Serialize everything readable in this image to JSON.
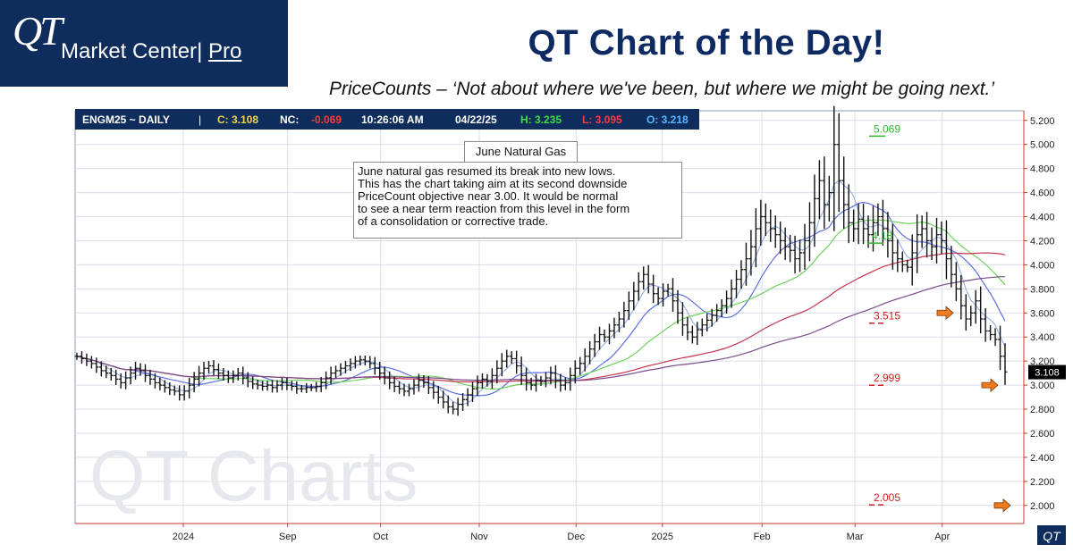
{
  "brand": {
    "logo_text": "QT",
    "name": "Market Center",
    "separator": "|",
    "tier": "Pro"
  },
  "headline": "QT Chart of the Day!",
  "subline": "PriceCounts – ‘Not about where we've been, but where we might be going next.’",
  "header_bar": {
    "symbol": "ENGM25 ~ DAILY",
    "sep": "|",
    "close": "C: 3.108",
    "net_label": "NC:",
    "net_value": "-0.069",
    "time": "10:26:06 AM",
    "date": "04/22/25",
    "high": "H: 3.235",
    "low": "L: 3.095",
    "open": "O: 3.218"
  },
  "note": {
    "title": "June Natural Gas",
    "lines": [
      "June natural gas resumed its break into new lows.",
      "This has the chart taking aim at its second downside",
      "PriceCount objective near 3.00.  It would be normal",
      "to see a near term reaction from this level in the form",
      "of a consolidation or corrective trade."
    ]
  },
  "watermark": "QT Charts",
  "corner_logo": "QT",
  "colors": {
    "navy": "#0e2c5c",
    "headline": "#0d2a63",
    "price_bar": "#111111",
    "ma_blue": "#5b70e0",
    "ma_lightblue": "#9bb2e8",
    "ma_green": "#6ed25c",
    "ma_red": "#c4344c",
    "ma_purple": "#7a4a8c",
    "objective_green": "#2fb82f",
    "objective_red": "#cc2222",
    "arrow": "#f07a1e",
    "last_price_bg": "#000000"
  },
  "chart_data": {
    "type": "line",
    "title": "June Natural Gas",
    "y_range": [
      1.85,
      5.28
    ],
    "y_ticks": [
      "5.200",
      "5.000",
      "4.800",
      "4.600",
      "4.400",
      "4.200",
      "4.000",
      "3.800",
      "3.600",
      "3.400",
      "3.200",
      "3.000",
      "2.800",
      "2.600",
      "2.400",
      "2.200",
      "2.000"
    ],
    "x_labels": [
      "2024",
      "Sep",
      "Oct",
      "Nov",
      "Dec",
      "2025",
      "Feb",
      "Mar",
      "Apr"
    ],
    "last_price": "3.108",
    "objectives": [
      {
        "label": "5.069",
        "value": 5.069,
        "color": "green"
      },
      {
        "label": "4.18",
        "value": 4.18,
        "color": "green"
      },
      {
        "label": "3.515",
        "value": 3.515,
        "color": "red"
      },
      {
        "label": "2.999",
        "value": 2.999,
        "color": "red"
      },
      {
        "label": "2.005",
        "value": 2.005,
        "color": "red"
      }
    ],
    "series": [
      {
        "closes": [
          3.24,
          3.22,
          3.2,
          3.18,
          3.15,
          3.12,
          3.1,
          3.08,
          3.05,
          3.02,
          3.06,
          3.1,
          3.14,
          3.12,
          3.08,
          3.05,
          3.02,
          3.0,
          2.98,
          2.96,
          2.95,
          2.92,
          2.95,
          3.0,
          3.05,
          3.1,
          3.14,
          3.16,
          3.13,
          3.1,
          3.08,
          3.06,
          3.08,
          3.1,
          3.06,
          3.03,
          3.01,
          3.0,
          2.99,
          3.0,
          2.98,
          3.0,
          3.02,
          3.0,
          2.99,
          2.97,
          2.97,
          2.98,
          2.98,
          2.99,
          3.02,
          3.06,
          3.1,
          3.12,
          3.14,
          3.16,
          3.18,
          3.2,
          3.21,
          3.2,
          3.18,
          3.14,
          3.1,
          3.06,
          3.02,
          2.99,
          2.97,
          2.95,
          2.97,
          3.0,
          3.04,
          3.02,
          2.98,
          2.94,
          2.9,
          2.86,
          2.82,
          2.8,
          2.84,
          2.88,
          2.92,
          2.97,
          3.02,
          3.05,
          3.03,
          3.08,
          3.14,
          3.2,
          3.24,
          3.22,
          3.16,
          3.08,
          3.02,
          3.0,
          3.04,
          3.03,
          3.06,
          3.1,
          3.04,
          3.0,
          3.02,
          3.08,
          3.14,
          3.18,
          3.24,
          3.3,
          3.36,
          3.42,
          3.4,
          3.45,
          3.5,
          3.55,
          3.62,
          3.7,
          3.78,
          3.86,
          3.92,
          3.84,
          3.76,
          3.72,
          3.78,
          3.8,
          3.7,
          3.6,
          3.5,
          3.44,
          3.4,
          3.46,
          3.5,
          3.54,
          3.58,
          3.62,
          3.66,
          3.72,
          3.8,
          3.88,
          3.96,
          4.05,
          4.15,
          4.3,
          4.4,
          4.35,
          4.3,
          4.25,
          4.2,
          4.15,
          4.12,
          4.05,
          4.1,
          4.2,
          4.35,
          4.55,
          4.7,
          4.5,
          4.6,
          5.0,
          4.7,
          4.5,
          4.35,
          4.3,
          4.38,
          4.3,
          4.25,
          4.35,
          4.4,
          4.3,
          4.2,
          4.1,
          4.05,
          4.0,
          3.98,
          4.1,
          4.25,
          4.3,
          4.2,
          4.15,
          4.25,
          4.2,
          4.05,
          3.92,
          3.8,
          3.66,
          3.55,
          3.6,
          3.7,
          3.55,
          3.45,
          3.42,
          3.38,
          3.24,
          3.11
        ],
        "ohlc_note": "daily high-low bars"
      }
    ]
  }
}
